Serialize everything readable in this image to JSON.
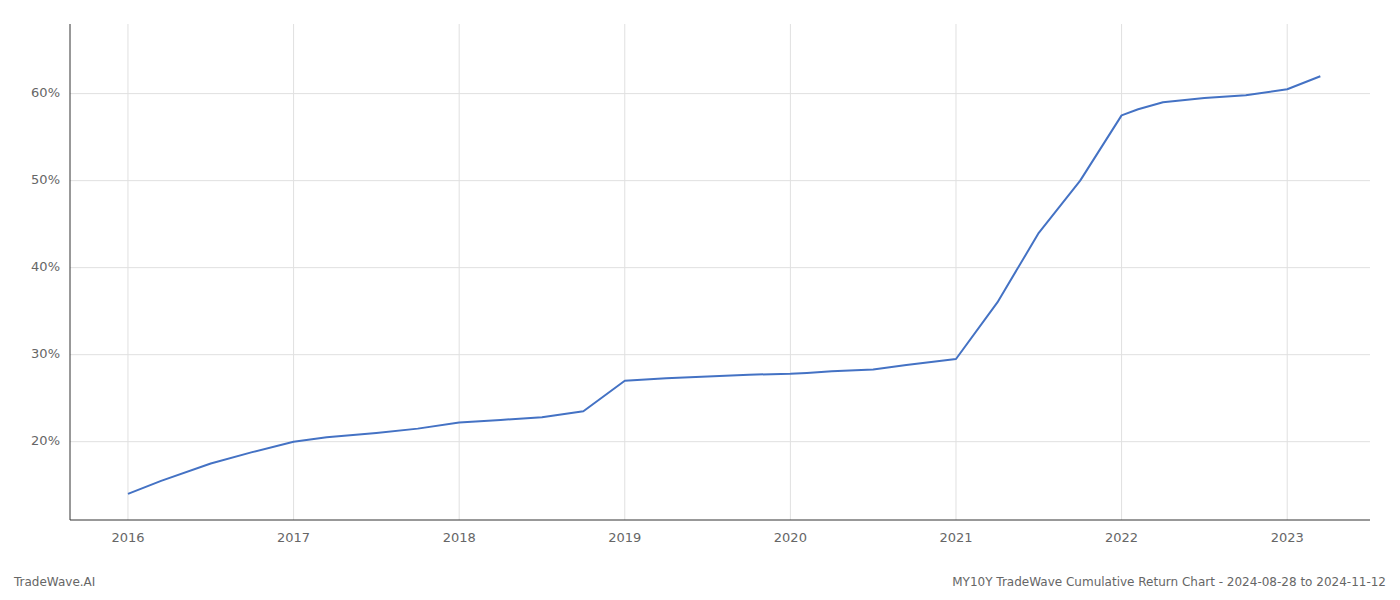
{
  "chart_data": {
    "type": "line",
    "title": "MY10Y TradeWave Cumulative Return Chart - 2024-08-28 to 2024-11-12",
    "annotations": [
      "TradeWave.AI"
    ],
    "color": "#4472c4",
    "grid": true,
    "x": [
      2016.0,
      2016.2,
      2016.5,
      2016.75,
      2017.0,
      2017.2,
      2017.5,
      2017.75,
      2018.0,
      2018.25,
      2018.5,
      2018.75,
      2019.0,
      2019.25,
      2019.5,
      2019.75,
      2020.0,
      2020.1,
      2020.25,
      2020.5,
      2020.7,
      2021.0,
      2021.25,
      2021.5,
      2021.75,
      2022.0,
      2022.1,
      2022.25,
      2022.5,
      2022.75,
      2023.0,
      2023.2
    ],
    "values": [
      0.14,
      0.155,
      0.175,
      0.188,
      0.2,
      0.205,
      0.21,
      0.215,
      0.222,
      0.225,
      0.228,
      0.235,
      0.27,
      0.273,
      0.275,
      0.277,
      0.278,
      0.279,
      0.281,
      0.283,
      0.288,
      0.295,
      0.36,
      0.44,
      0.5,
      0.575,
      0.582,
      0.59,
      0.595,
      0.598,
      0.605,
      0.62
    ],
    "xlim": [
      2015.65,
      2023.5
    ],
    "ylim": [
      0.11,
      0.68
    ],
    "xticks": [
      2016,
      2017,
      2018,
      2019,
      2020,
      2021,
      2022,
      2023
    ],
    "yticks": [
      {
        "value": 0.2,
        "label": "20%"
      },
      {
        "value": 0.3,
        "label": "30%"
      },
      {
        "value": 0.4,
        "label": "40%"
      },
      {
        "value": 0.5,
        "label": "50%"
      },
      {
        "value": 0.6,
        "label": "60%"
      }
    ]
  }
}
